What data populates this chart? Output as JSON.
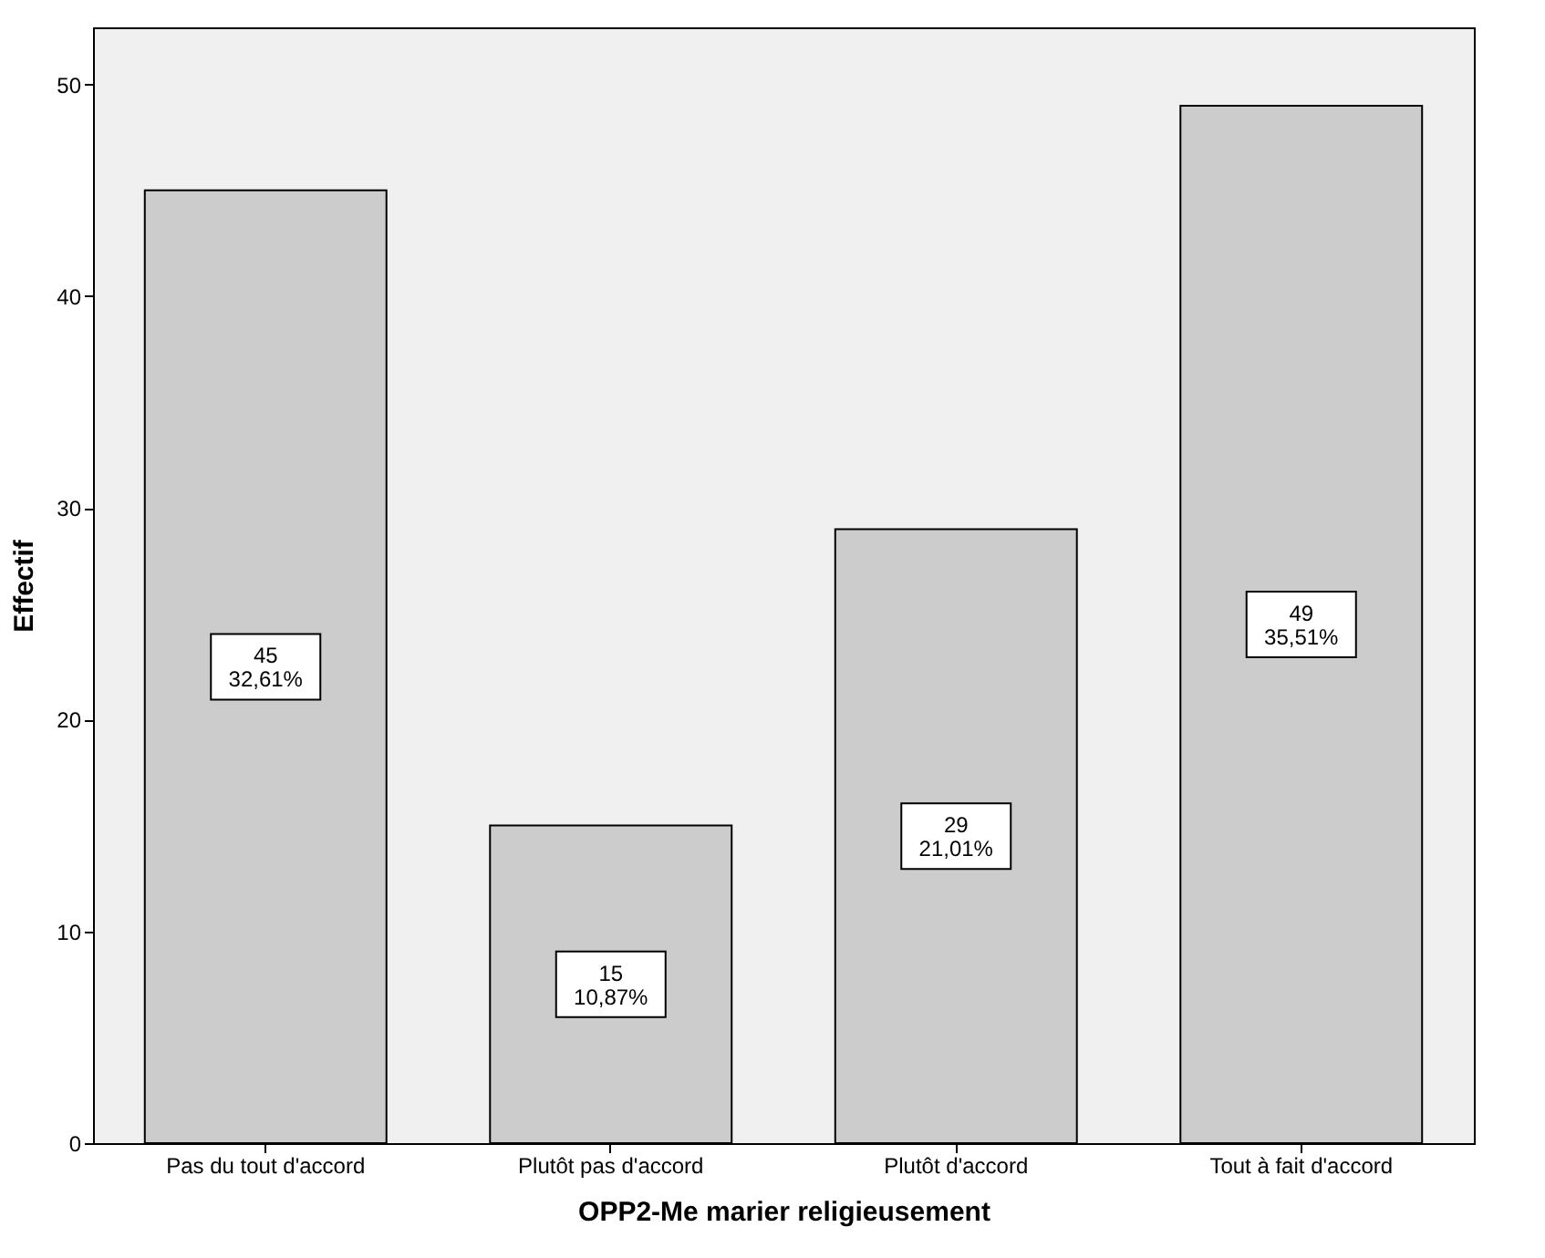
{
  "chart_data": {
    "type": "bar",
    "xlabel": "OPP2-Me marier religieusement",
    "ylabel": "Effectif",
    "categories": [
      "Pas du tout d'accord",
      "Plutôt pas d'accord",
      "Plutôt d'accord",
      "Tout à fait d'accord"
    ],
    "values": [
      45,
      15,
      29,
      49
    ],
    "value_labels": [
      "45\n32,61%",
      "15\n10,87%",
      "29\n21,01%",
      "49\n35,51%"
    ],
    "color": "#cccccc",
    "ylim": [
      0,
      52.7
    ],
    "yticks": [
      0,
      10,
      20,
      30,
      40,
      50
    ],
    "grid": false
  }
}
